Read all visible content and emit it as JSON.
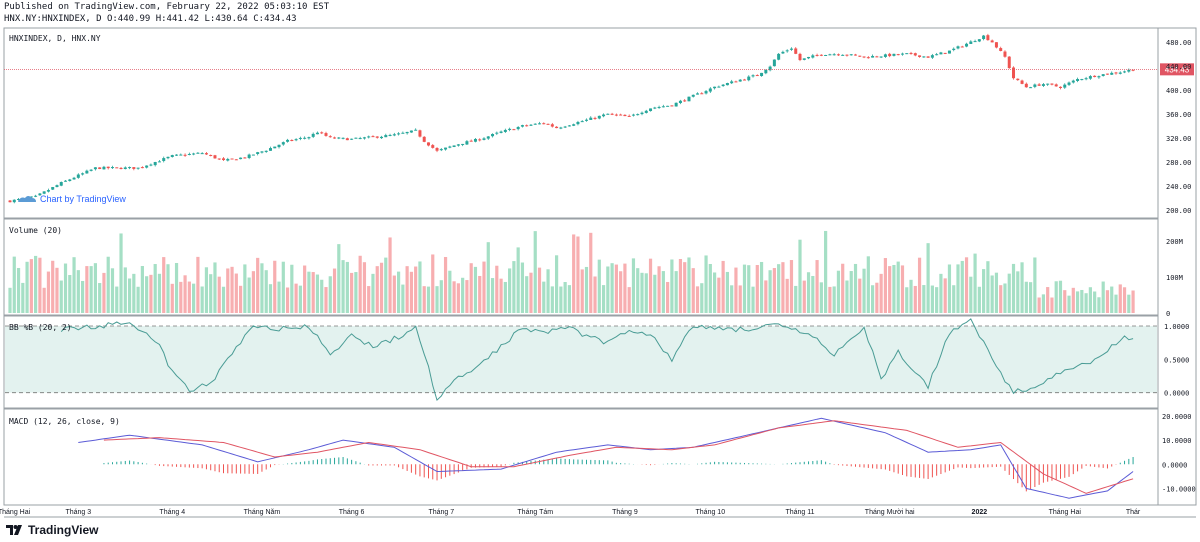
{
  "header": {
    "published": "Published on TradingView.com, February 22, 2022 05:03:10 EST",
    "ohlc": "HNX.NY:HNXINDEX, D O:440.99 H:441.42 L:430.64 C:434.43"
  },
  "footer": {
    "brand": "TradingView"
  },
  "colors": {
    "up": "#26a69a",
    "down": "#ef5350",
    "up_vol": "#a5dfc5",
    "down_vol": "#f7aeb0",
    "bb": "#4a9c95",
    "bb_fill": "#e3f2ef",
    "macd": "#5b5bd6",
    "signal": "#e05563"
  },
  "chart_data": [
    {
      "type": "candlestick",
      "title": "HNXINDEX, D, HNX.NY",
      "watermark": "Chart by TradingView",
      "ylim": [
        190,
        500
      ],
      "yticks": [
        "480.00",
        "440.00",
        "400.00",
        "360.00",
        "320.00",
        "280.00",
        "240.00",
        "200.00"
      ],
      "yvalues": [
        480,
        440,
        400,
        360,
        320,
        280,
        240,
        200
      ],
      "last_price_label": "434.43",
      "last_price": 434.43,
      "anchors": [
        [
          0,
          215
        ],
        [
          6,
          222
        ],
        [
          12,
          245
        ],
        [
          20,
          270
        ],
        [
          30,
          270
        ],
        [
          38,
          290
        ],
        [
          45,
          295
        ],
        [
          50,
          282
        ],
        [
          55,
          288
        ],
        [
          60,
          300
        ],
        [
          65,
          315
        ],
        [
          70,
          322
        ],
        [
          72,
          330
        ],
        [
          75,
          320
        ],
        [
          80,
          318
        ],
        [
          90,
          325
        ],
        [
          95,
          332
        ],
        [
          97,
          315
        ],
        [
          100,
          298
        ],
        [
          105,
          310
        ],
        [
          110,
          318
        ],
        [
          115,
          330
        ],
        [
          120,
          340
        ],
        [
          125,
          345
        ],
        [
          128,
          337
        ],
        [
          135,
          350
        ],
        [
          140,
          360
        ],
        [
          145,
          355
        ],
        [
          150,
          370
        ],
        [
          155,
          375
        ],
        [
          160,
          390
        ],
        [
          165,
          405
        ],
        [
          170,
          415
        ],
        [
          175,
          425
        ],
        [
          178,
          440
        ],
        [
          180,
          460
        ],
        [
          183,
          470
        ],
        [
          185,
          450
        ],
        [
          190,
          460
        ],
        [
          195,
          460
        ],
        [
          200,
          455
        ],
        [
          210,
          460
        ],
        [
          215,
          455
        ],
        [
          220,
          465
        ],
        [
          225,
          480
        ],
        [
          228,
          490
        ],
        [
          230,
          480
        ],
        [
          233,
          455
        ],
        [
          235,
          420
        ],
        [
          238,
          405
        ],
        [
          242,
          410
        ],
        [
          246,
          405
        ],
        [
          250,
          418
        ],
        [
          255,
          425
        ],
        [
          260,
          430
        ],
        [
          263,
          434.43
        ]
      ]
    },
    {
      "type": "bar",
      "title": "Volume (20)",
      "yticks": [
        "200M",
        "100M",
        "0"
      ],
      "yvalues": [
        200,
        100,
        0
      ],
      "ylim": [
        0,
        250
      ],
      "units": "M"
    },
    {
      "type": "line",
      "title": "BB %B (20, 2)",
      "yticks": [
        "1.0000",
        "0.5000",
        "0.0000"
      ],
      "yvalues": [
        1,
        0.5,
        0
      ],
      "ylim": [
        -0.2,
        1.12
      ],
      "anchors": [
        [
          0,
          0.72
        ],
        [
          5,
          0.92
        ],
        [
          10,
          0.95
        ],
        [
          20,
          0.98
        ],
        [
          28,
          1.08
        ],
        [
          35,
          0.72
        ],
        [
          38,
          0.3
        ],
        [
          42,
          0.05
        ],
        [
          47,
          0.12
        ],
        [
          52,
          0.6
        ],
        [
          57,
          1.0
        ],
        [
          65,
          0.95
        ],
        [
          70,
          1.0
        ],
        [
          75,
          0.55
        ],
        [
          80,
          0.85
        ],
        [
          85,
          0.7
        ],
        [
          92,
          0.85
        ],
        [
          95,
          1.0
        ],
        [
          98,
          0.4
        ],
        [
          100,
          -0.15
        ],
        [
          104,
          0.2
        ],
        [
          108,
          0.3
        ],
        [
          115,
          0.7
        ],
        [
          120,
          0.98
        ],
        [
          125,
          0.9
        ],
        [
          130,
          1.0
        ],
        [
          135,
          0.85
        ],
        [
          140,
          0.75
        ],
        [
          145,
          0.95
        ],
        [
          150,
          0.88
        ],
        [
          155,
          0.5
        ],
        [
          160,
          1.0
        ],
        [
          170,
          0.95
        ],
        [
          180,
          1.0
        ],
        [
          188,
          0.85
        ],
        [
          193,
          0.55
        ],
        [
          200,
          1.0
        ],
        [
          204,
          0.2
        ],
        [
          208,
          0.6
        ],
        [
          212,
          0.3
        ],
        [
          215,
          0.1
        ],
        [
          220,
          0.9
        ],
        [
          225,
          1.12
        ],
        [
          230,
          0.5
        ],
        [
          235,
          0.0
        ],
        [
          240,
          0.1
        ],
        [
          248,
          0.35
        ],
        [
          255,
          0.5
        ],
        [
          260,
          0.8
        ],
        [
          263,
          0.85
        ]
      ]
    },
    {
      "type": "line",
      "title": "MACD (12, 26, close, 9)",
      "yticks": [
        "20.0000",
        "10.0000",
        "0.0000",
        "-10.0000"
      ],
      "yvalues": [
        20,
        10,
        0,
        -10
      ],
      "ylim": [
        -16,
        22
      ],
      "macd_anchors": [
        [
          16,
          9
        ],
        [
          28,
          12
        ],
        [
          45,
          8
        ],
        [
          58,
          1
        ],
        [
          70,
          6
        ],
        [
          78,
          10
        ],
        [
          90,
          7
        ],
        [
          100,
          -3
        ],
        [
          115,
          -2
        ],
        [
          128,
          5
        ],
        [
          140,
          8
        ],
        [
          150,
          6
        ],
        [
          160,
          7
        ],
        [
          175,
          13
        ],
        [
          190,
          19
        ],
        [
          205,
          13
        ],
        [
          215,
          5
        ],
        [
          225,
          6
        ],
        [
          232,
          8
        ],
        [
          238,
          -10
        ],
        [
          248,
          -14
        ],
        [
          257,
          -11
        ],
        [
          263,
          -3
        ]
      ],
      "signal_anchors": [
        [
          22,
          10
        ],
        [
          35,
          11
        ],
        [
          50,
          9
        ],
        [
          62,
          3
        ],
        [
          72,
          5
        ],
        [
          84,
          9
        ],
        [
          96,
          6
        ],
        [
          108,
          -1
        ],
        [
          118,
          -1
        ],
        [
          132,
          4
        ],
        [
          142,
          7
        ],
        [
          155,
          6
        ],
        [
          165,
          8
        ],
        [
          180,
          15
        ],
        [
          193,
          18
        ],
        [
          210,
          14
        ],
        [
          222,
          7
        ],
        [
          232,
          9
        ],
        [
          242,
          -4
        ],
        [
          252,
          -12
        ],
        [
          263,
          -6
        ]
      ]
    }
  ],
  "xaxis": {
    "labels": [
      "Tháng Hai",
      "Tháng 3",
      "Tháng 4",
      "Tháng Năm",
      "Tháng 6",
      "Tháng 7",
      "Tháng Tám",
      "Tháng 9",
      "Tháng 10",
      "Tháng 11",
      "Tháng Mười hai",
      "2022",
      "Tháng Hai",
      "Thár"
    ],
    "indices": [
      -1,
      16,
      38,
      59,
      80,
      101,
      123,
      144,
      164,
      185,
      206,
      227,
      247,
      263
    ]
  }
}
